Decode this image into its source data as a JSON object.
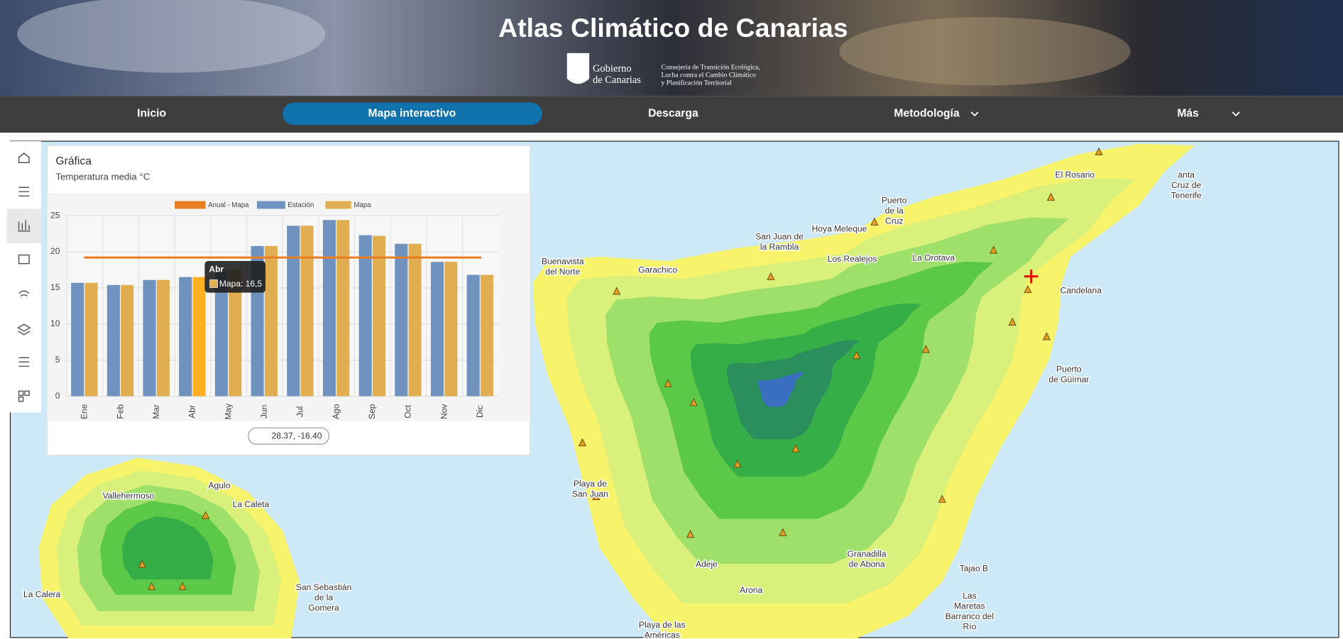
{
  "header": {
    "title": "Atlas Climático de Canarias",
    "logo_line1": "Gobierno",
    "logo_line2": "de Canarias",
    "department": [
      "Consejería de Transición Ecológica,",
      "Lucha contra el Cambio Climático",
      "y Planificación Territorial"
    ]
  },
  "nav": [
    {
      "label": "Inicio"
    },
    {
      "label": "Mapa interactivo",
      "active": true
    },
    {
      "label": "Descarga"
    },
    {
      "label": "Metodología",
      "menu": true
    },
    {
      "label": "Más",
      "menu": true
    }
  ],
  "chart_panel": {
    "title": "Gráfica",
    "subtitle": "Temperatura media °C",
    "coordinates": "28.37, -16.40",
    "chart_data": {
      "type": "bar",
      "categories": [
        "Ene",
        "Feb",
        "Mar",
        "Abr",
        "May",
        "Jun",
        "Jul",
        "Ago",
        "Sep",
        "Oct",
        "Nov",
        "Dic"
      ],
      "series": [
        {
          "name": "Estación",
          "color": "#7092be",
          "values": [
            15.7,
            15.4,
            16.1,
            16.5,
            17.5,
            20.8,
            23.6,
            24.4,
            22.3,
            21.1,
            18.6,
            16.8
          ]
        },
        {
          "name": "Mapa",
          "color": "#e0ae50",
          "highlight_color": "#ffb020",
          "values": [
            15.7,
            15.4,
            16.1,
            16.5,
            17.5,
            20.8,
            23.6,
            24.4,
            22.2,
            21.1,
            18.6,
            16.8
          ]
        }
      ],
      "reference_line": {
        "name": "Anual - Mapa",
        "color": "#e87d22",
        "value": 19.2
      },
      "ylim": [
        0,
        25
      ],
      "yticks": [
        0,
        5,
        10,
        15,
        20,
        25
      ],
      "grid": true,
      "tooltip": {
        "category": 3,
        "label": "Mapa: 16,5"
      }
    }
  },
  "map_labels": [
    [
      "anta",
      "Cruz de",
      "Tenerife"
    ],
    [
      "Puerto",
      "de la",
      "Cruz"
    ],
    [
      "San Juan de",
      "la Rambla"
    ],
    [
      "Hoya Meleque"
    ],
    [
      "Garachico"
    ],
    [
      "Buenavista",
      "del Norte"
    ],
    [
      "Candelaria"
    ],
    [
      "Puerto",
      "de Güímar"
    ],
    [
      "Playa de",
      "San Juan"
    ],
    [
      "Adeje"
    ],
    [
      "Arona"
    ],
    [
      "Granadilla",
      "de Abona"
    ],
    [
      "Playa de las",
      "Américas"
    ],
    [
      "Las",
      "Maretas",
      "Barranco del",
      "Río"
    ],
    [
      "Agulo"
    ],
    [
      "La Caleta"
    ],
    [
      "San Sebastián",
      "de la",
      "Gomera"
    ],
    [
      "La Calera"
    ],
    [
      "Vallehermoso"
    ],
    [
      "La Orotava"
    ],
    [
      "Los Realejos"
    ],
    [
      "El Rosario"
    ],
    [
      "Tajao B"
    ]
  ]
}
